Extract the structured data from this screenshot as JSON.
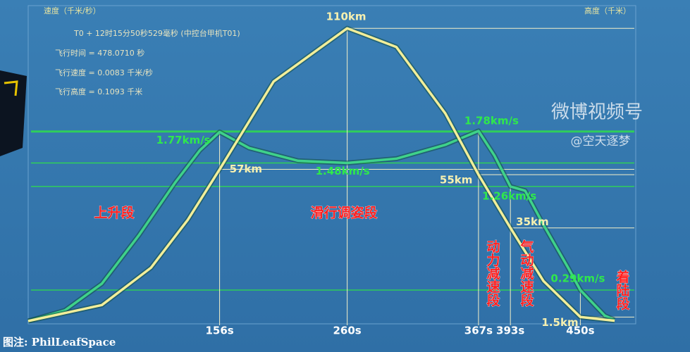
{
  "chart_data": {
    "type": "line",
    "y_axis_label": "速度（千米/秒）",
    "y2_axis_label": "高度（千米）",
    "info": [
      "T0 + 12时15分50秒529毫秒 (中控台甲机T01)",
      "飞行时间 = 478.0710 秒",
      "飞行速度 = 0.0083 千米/秒",
      "飞行高度 = 0.1093 千米"
    ],
    "xlim": [
      0,
      494
    ],
    "ylim": [
      0,
      2.94
    ],
    "y2lim": [
      0,
      118
    ],
    "series": [
      {
        "color": "#3fd28a",
        "axis": "y",
        "x": [
          0,
          30,
          60,
          90,
          120,
          140,
          156,
          180,
          220,
          260,
          300,
          340,
          367,
          380,
          393,
          405,
          420,
          440,
          450,
          470,
          478
        ],
        "values": [
          0,
          0.1,
          0.35,
          0.8,
          1.3,
          1.6,
          1.77,
          1.62,
          1.5,
          1.48,
          1.52,
          1.65,
          1.78,
          1.55,
          1.26,
          1.22,
          0.9,
          0.5,
          0.29,
          0.05,
          0.01
        ]
      },
      {
        "color": "#f2ee9a",
        "axis": "y2",
        "x": [
          0,
          60,
          100,
          130,
          156,
          200,
          260,
          300,
          340,
          367,
          393,
          420,
          450,
          478
        ],
        "values": [
          0,
          6,
          20,
          38,
          57,
          90,
          110,
          103,
          78,
          55,
          35,
          15,
          1.5,
          0.1
        ]
      }
    ],
    "speed_annotations": [
      {
        "label": "1.77km/s",
        "value": 1.77,
        "x": 156
      },
      {
        "label": "1.48km/s",
        "value": 1.48,
        "x": 260
      },
      {
        "label": "1.78km/s",
        "value": 1.78,
        "x": 367
      },
      {
        "label": "1.26km/s",
        "value": 1.26,
        "x": 393
      },
      {
        "label": "0.29km/s",
        "value": 0.29,
        "x": 450
      }
    ],
    "altitude_annotations": [
      {
        "label": "110km",
        "value": 110,
        "x": 260
      },
      {
        "label": "57km",
        "value": 57,
        "x": 156
      },
      {
        "label": "55km",
        "value": 55,
        "x": 367
      },
      {
        "label": "35km",
        "value": 35,
        "x": 393
      },
      {
        "label": "1.5km",
        "value": 1.5,
        "x": 450
      }
    ],
    "time_markers": [
      {
        "value": 156,
        "label": "156s"
      },
      {
        "value": 260,
        "label": "260s"
      },
      {
        "value": 367,
        "label": "367s"
      },
      {
        "value": 393,
        "label": "393s"
      },
      {
        "value": 450,
        "label": "450s"
      }
    ],
    "phases": [
      "上升段",
      "滑行调姿段",
      "动力减速段",
      "气动减速段",
      "着陆段"
    ],
    "watermark": [
      "微博视频号",
      "@空天逐梦"
    ],
    "credit": "图注: PhilLeafSpace"
  }
}
